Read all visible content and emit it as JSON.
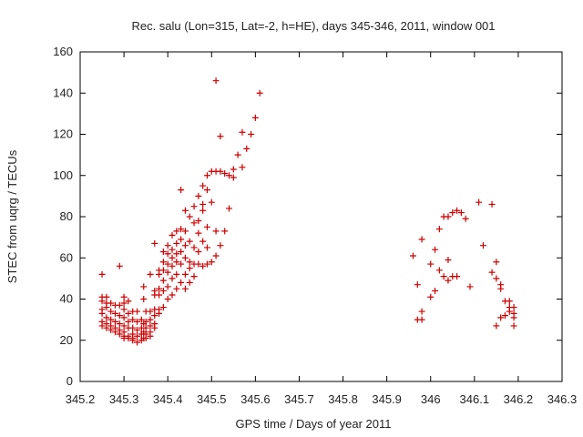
{
  "chart_data": {
    "type": "scatter",
    "title": "Rec. salu (Lon=315, Lat=-2, h=HE), days 345-346, 2011, window 001",
    "xlabel": "GPS time / Days of year 2011",
    "ylabel": "STEC from uqrg / TECUs",
    "xlim": [
      345.2,
      346.3
    ],
    "ylim": [
      0,
      160
    ],
    "xticks": [
      "345.2",
      "345.3",
      "345.4",
      "345.5",
      "345.6",
      "345.7",
      "345.8",
      "345.9",
      "346",
      "346.1",
      "346.2",
      "346.3"
    ],
    "yticks": [
      "0",
      "20",
      "40",
      "60",
      "80",
      "100",
      "120",
      "140",
      "160"
    ],
    "grid": false,
    "marker": "+",
    "color": "#cc0000",
    "points": [
      [
        345.25,
        52
      ],
      [
        345.25,
        41
      ],
      [
        345.25,
        39
      ],
      [
        345.25,
        35
      ],
      [
        345.25,
        33
      ],
      [
        345.25,
        29
      ],
      [
        345.25,
        27
      ],
      [
        345.26,
        41
      ],
      [
        345.26,
        38
      ],
      [
        345.26,
        36
      ],
      [
        345.26,
        31
      ],
      [
        345.26,
        28
      ],
      [
        345.26,
        26
      ],
      [
        345.27,
        38
      ],
      [
        345.27,
        34
      ],
      [
        345.27,
        30
      ],
      [
        345.27,
        27
      ],
      [
        345.27,
        25
      ],
      [
        345.28,
        37
      ],
      [
        345.28,
        33
      ],
      [
        345.28,
        29
      ],
      [
        345.28,
        26
      ],
      [
        345.28,
        24
      ],
      [
        345.29,
        56
      ],
      [
        345.29,
        37
      ],
      [
        345.29,
        32
      ],
      [
        345.29,
        28
      ],
      [
        345.29,
        25
      ],
      [
        345.29,
        23
      ],
      [
        345.3,
        41
      ],
      [
        345.3,
        38
      ],
      [
        345.3,
        35
      ],
      [
        345.3,
        31
      ],
      [
        345.3,
        27
      ],
      [
        345.3,
        24
      ],
      [
        345.3,
        22
      ],
      [
        345.3,
        21
      ],
      [
        345.31,
        39
      ],
      [
        345.31,
        33
      ],
      [
        345.31,
        29
      ],
      [
        345.31,
        26
      ],
      [
        345.31,
        22
      ],
      [
        345.31,
        21
      ],
      [
        345.32,
        34
      ],
      [
        345.32,
        30
      ],
      [
        345.32,
        26
      ],
      [
        345.32,
        23
      ],
      [
        345.32,
        21
      ],
      [
        345.32,
        20
      ],
      [
        345.33,
        34
      ],
      [
        345.33,
        29
      ],
      [
        345.33,
        25
      ],
      [
        345.33,
        22
      ],
      [
        345.33,
        19
      ],
      [
        345.34,
        30
      ],
      [
        345.34,
        26
      ],
      [
        345.34,
        23
      ],
      [
        345.34,
        20
      ],
      [
        345.345,
        46
      ],
      [
        345.345,
        40
      ],
      [
        345.345,
        28
      ],
      [
        345.345,
        24
      ],
      [
        345.345,
        21
      ],
      [
        345.35,
        34
      ],
      [
        345.35,
        29
      ],
      [
        345.35,
        26
      ],
      [
        345.35,
        23
      ],
      [
        345.35,
        21
      ],
      [
        345.36,
        52
      ],
      [
        345.36,
        34
      ],
      [
        345.36,
        30
      ],
      [
        345.36,
        27
      ],
      [
        345.36,
        24
      ],
      [
        345.36,
        22
      ],
      [
        345.37,
        67
      ],
      [
        345.37,
        44
      ],
      [
        345.37,
        42
      ],
      [
        345.37,
        35
      ],
      [
        345.37,
        32
      ],
      [
        345.37,
        28
      ],
      [
        345.37,
        26
      ],
      [
        345.38,
        54
      ],
      [
        345.38,
        52
      ],
      [
        345.38,
        45
      ],
      [
        345.38,
        42
      ],
      [
        345.38,
        35
      ],
      [
        345.38,
        33
      ],
      [
        345.39,
        63
      ],
      [
        345.39,
        58
      ],
      [
        345.39,
        54
      ],
      [
        345.39,
        49
      ],
      [
        345.39,
        44
      ],
      [
        345.39,
        36
      ],
      [
        345.4,
        66
      ],
      [
        345.4,
        62
      ],
      [
        345.4,
        57
      ],
      [
        345.4,
        53
      ],
      [
        345.4,
        46
      ],
      [
        345.4,
        40
      ],
      [
        345.41,
        71
      ],
      [
        345.41,
        64
      ],
      [
        345.41,
        60
      ],
      [
        345.41,
        56
      ],
      [
        345.41,
        50
      ],
      [
        345.41,
        42
      ],
      [
        345.42,
        73
      ],
      [
        345.42,
        67
      ],
      [
        345.42,
        62
      ],
      [
        345.42,
        58
      ],
      [
        345.42,
        52
      ],
      [
        345.42,
        45
      ],
      [
        345.43,
        93
      ],
      [
        345.43,
        74
      ],
      [
        345.43,
        69
      ],
      [
        345.43,
        63
      ],
      [
        345.43,
        57
      ],
      [
        345.43,
        48
      ],
      [
        345.44,
        83
      ],
      [
        345.44,
        73
      ],
      [
        345.44,
        66
      ],
      [
        345.44,
        60
      ],
      [
        345.44,
        52
      ],
      [
        345.44,
        45
      ],
      [
        345.45,
        80
      ],
      [
        345.45,
        68
      ],
      [
        345.45,
        58
      ],
      [
        345.45,
        55
      ],
      [
        345.45,
        48
      ],
      [
        345.46,
        85
      ],
      [
        345.46,
        77
      ],
      [
        345.46,
        65
      ],
      [
        345.46,
        57
      ],
      [
        345.46,
        51
      ],
      [
        345.47,
        90
      ],
      [
        345.47,
        78
      ],
      [
        345.47,
        72
      ],
      [
        345.47,
        63
      ],
      [
        345.47,
        57
      ],
      [
        345.48,
        95
      ],
      [
        345.48,
        86
      ],
      [
        345.48,
        83
      ],
      [
        345.48,
        68
      ],
      [
        345.48,
        56
      ],
      [
        345.49,
        100
      ],
      [
        345.49,
        93
      ],
      [
        345.49,
        75
      ],
      [
        345.49,
        65
      ],
      [
        345.49,
        57
      ],
      [
        345.5,
        102
      ],
      [
        345.5,
        87
      ],
      [
        345.5,
        58
      ],
      [
        345.51,
        146
      ],
      [
        345.51,
        102
      ],
      [
        345.51,
        73
      ],
      [
        345.51,
        61
      ],
      [
        345.52,
        119
      ],
      [
        345.52,
        102
      ],
      [
        345.52,
        66
      ],
      [
        345.53,
        101
      ],
      [
        345.53,
        73
      ],
      [
        345.54,
        84
      ],
      [
        345.54,
        100
      ],
      [
        345.55,
        103
      ],
      [
        345.55,
        99
      ],
      [
        345.56,
        110
      ],
      [
        345.57,
        121
      ],
      [
        345.57,
        104
      ],
      [
        345.58,
        113
      ],
      [
        345.59,
        120
      ],
      [
        345.6,
        128
      ],
      [
        345.61,
        140
      ],
      [
        345.96,
        61
      ],
      [
        345.97,
        47
      ],
      [
        345.97,
        30
      ],
      [
        345.98,
        69
      ],
      [
        345.98,
        34
      ],
      [
        345.98,
        30
      ],
      [
        346.0,
        57
      ],
      [
        346.0,
        41
      ],
      [
        346.01,
        64
      ],
      [
        346.01,
        44
      ],
      [
        346.02,
        74
      ],
      [
        346.02,
        54
      ],
      [
        346.03,
        80
      ],
      [
        346.03,
        51
      ],
      [
        346.04,
        80
      ],
      [
        346.04,
        59
      ],
      [
        346.04,
        49
      ],
      [
        346.05,
        82
      ],
      [
        346.05,
        51
      ],
      [
        346.06,
        83
      ],
      [
        346.06,
        51
      ],
      [
        346.07,
        82
      ],
      [
        346.08,
        79
      ],
      [
        346.09,
        46
      ],
      [
        346.11,
        87
      ],
      [
        346.12,
        66
      ],
      [
        346.14,
        86
      ],
      [
        346.14,
        53
      ],
      [
        346.15,
        58
      ],
      [
        346.15,
        50
      ],
      [
        346.15,
        27
      ],
      [
        346.16,
        47
      ],
      [
        346.16,
        45
      ],
      [
        346.16,
        31
      ],
      [
        346.17,
        39
      ],
      [
        346.17,
        32
      ],
      [
        346.18,
        39
      ],
      [
        346.18,
        34
      ],
      [
        346.18,
        36
      ],
      [
        346.19,
        36
      ],
      [
        346.19,
        33
      ],
      [
        346.19,
        31
      ],
      [
        346.19,
        27
      ]
    ]
  }
}
